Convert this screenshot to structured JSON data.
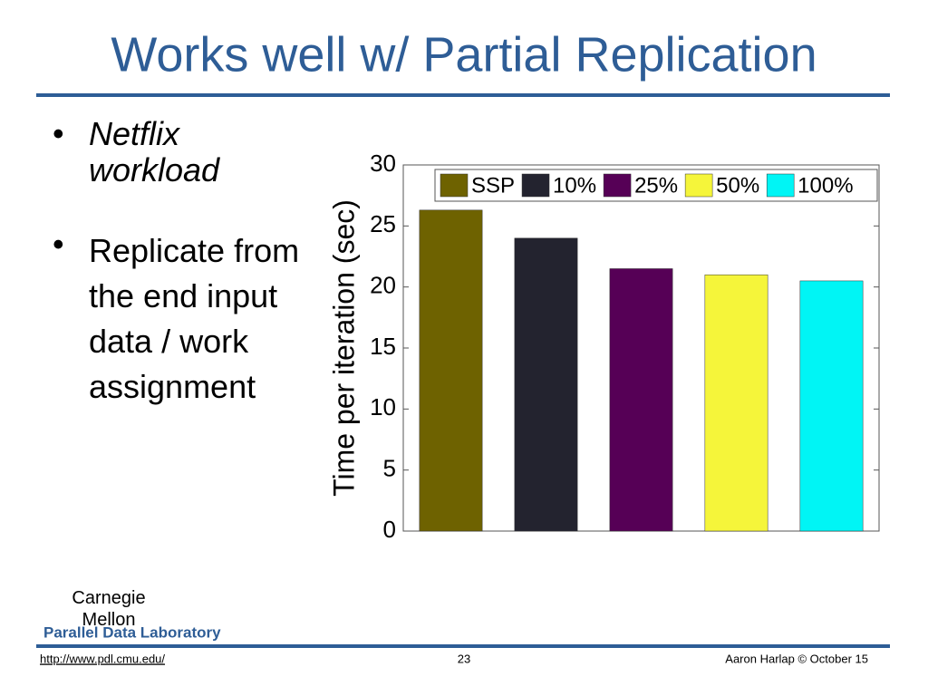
{
  "title": "Works well w/ Partial Replication",
  "bullets": [
    "Netflix workload",
    "Replicate from the end input data / work assignment"
  ],
  "footer": {
    "logo": "Carnegie Mellon",
    "lab": "Parallel Data Laboratory",
    "url": "http://www.pdl.cmu.edu/",
    "page": "23",
    "author": "Aaron Harlap © October 15"
  },
  "chart_data": {
    "type": "bar",
    "y_label": "Time per iteration (sec)",
    "series": [
      {
        "name": "SSP",
        "color": "#6e6200",
        "values": [
          26.3
        ]
      },
      {
        "name": "10%",
        "color": "#23232f",
        "values": [
          24.0
        ]
      },
      {
        "name": "25%",
        "color": "#560056",
        "values": [
          21.5
        ]
      },
      {
        "name": "50%",
        "color": "#f5f53a",
        "values": [
          21.0
        ]
      },
      {
        "name": "100%",
        "color": "#00f5f5",
        "values": [
          20.5
        ]
      }
    ],
    "ylim": [
      0,
      30
    ],
    "yticks": [
      0,
      5,
      10,
      15,
      20,
      25,
      30
    ],
    "legend": "top"
  }
}
